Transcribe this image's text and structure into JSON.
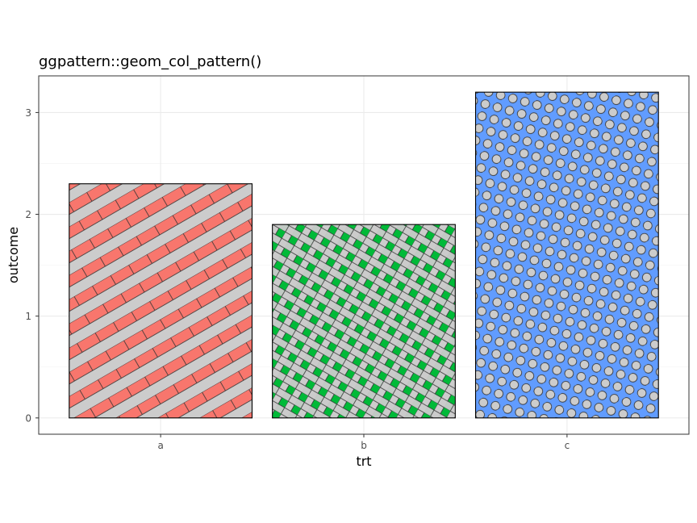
{
  "chart_data": {
    "type": "bar",
    "title": "ggpattern::geom_col_pattern()",
    "xlabel": "trt",
    "ylabel": "outcome",
    "categories": [
      "a",
      "b",
      "c"
    ],
    "values": [
      2.3,
      1.9,
      3.2
    ],
    "ylim": [
      -0.16,
      3.36
    ],
    "yticks": [
      0,
      1,
      2,
      3
    ],
    "grid": true,
    "patterns": [
      "stripe",
      "crosshatch",
      "circle"
    ],
    "fill_colors": [
      "#F8766D",
      "#00BA38",
      "#619CFF"
    ],
    "pattern_color": "#cccccc"
  }
}
